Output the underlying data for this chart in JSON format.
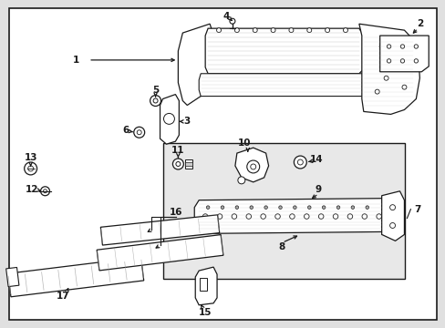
{
  "bg": "#e0e0e0",
  "white": "#ffffff",
  "lc": "#1a1a1a",
  "gray_hatch": "#999999",
  "inner_bg": "#d8d8d8",
  "figsize": [
    4.89,
    3.6
  ],
  "dpi": 100
}
